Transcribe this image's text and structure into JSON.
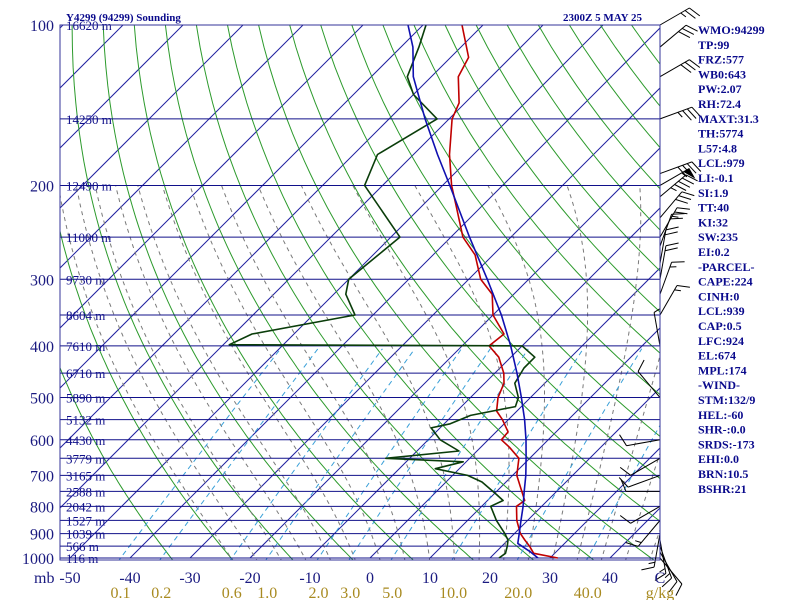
{
  "header": {
    "title": "Y4299 (94299) Sounding",
    "time": "2300Z  5 MAY 25"
  },
  "indices": [
    "WMO:94299",
    "TP:99",
    "FRZ:577",
    "WB0:643",
    "PW:2.07",
    "RH:72.4",
    "MAXT:31.3",
    "TH:5774",
    "L57:4.8",
    "LCL:979",
    "LI:-0.1",
    "SI:1.9",
    "TT:40",
    "KI:32",
    "SW:235",
    "EI:0.2",
    "-PARCEL-",
    "CAPE:224",
    "CINH:0",
    "LCL:939",
    "CAP:0.5",
    "LFC:924",
    "EL:674",
    "MPL:174",
    "-WIND-",
    "STM:132/9",
    "HEL:-60",
    "SHR-:0.0",
    "SRDS:-173",
    "EHI:0.0",
    "BRN:10.5",
    "BSHR:21"
  ],
  "axes": {
    "mb_label": "mb",
    "pressure_ticks": [
      "100",
      "200",
      "300",
      "400",
      "500",
      "600",
      "700",
      "800",
      "900",
      "1000"
    ],
    "temp_ticks": [
      "-50",
      "-40",
      "-30",
      "-20",
      "-10",
      "0",
      "10",
      "20",
      "30",
      "40",
      "C"
    ],
    "mixing_ratio_ticks": [
      "0.1",
      "0.2",
      "0.6",
      "1.0",
      "2.0",
      "3.0",
      "5.0",
      "10.0",
      "20.0",
      "40.0",
      "g/kg"
    ]
  },
  "height_labels": [
    {
      "p": 100,
      "text": "16620 m"
    },
    {
      "p": 150,
      "text": "14250 m"
    },
    {
      "p": 200,
      "text": "12490 m"
    },
    {
      "p": 250,
      "text": "11000 m"
    },
    {
      "p": 300,
      "text": "9730 m"
    },
    {
      "p": 350,
      "text": "8604 m"
    },
    {
      "p": 400,
      "text": "7610 m"
    },
    {
      "p": 450,
      "text": "6710 m"
    },
    {
      "p": 500,
      "text": "5890 m"
    },
    {
      "p": 550,
      "text": "5132 m"
    },
    {
      "p": 600,
      "text": "4430 m"
    },
    {
      "p": 650,
      "text": "3779 m"
    },
    {
      "p": 700,
      "text": "3165 m"
    },
    {
      "p": 750,
      "text": "2588 m"
    },
    {
      "p": 800,
      "text": "2042 m"
    },
    {
      "p": 850,
      "text": "1527 m"
    },
    {
      "p": 900,
      "text": "1039 m"
    },
    {
      "p": 950,
      "text": "566 m"
    },
    {
      "p": 1000,
      "text": "116 m"
    }
  ],
  "chart_data": {
    "type": "skew-t log-p sounding",
    "pressure_range_hpa": [
      1000,
      100
    ],
    "temperature_axis_range_c": [
      -50,
      50
    ],
    "skew": "45 degrees",
    "pressure_levels": [
      1000,
      950,
      925,
      900,
      850,
      800,
      750,
      700,
      650,
      600,
      550,
      500,
      450,
      400,
      350,
      300,
      250,
      200,
      150,
      125,
      100
    ],
    "series": [
      {
        "name": "temperature",
        "color": "#c00000",
        "points": [
          [
            1000,
            31.3
          ],
          [
            980,
            26.5
          ],
          [
            950,
            24.6
          ],
          [
            925,
            22.8
          ],
          [
            900,
            21.0
          ],
          [
            850,
            18.2
          ],
          [
            800,
            15.8
          ],
          [
            780,
            16.2
          ],
          [
            750,
            14.2
          ],
          [
            700,
            10.7
          ],
          [
            650,
            8.2
          ],
          [
            620,
            4.8
          ],
          [
            600,
            2.2
          ],
          [
            580,
            2.0
          ],
          [
            550,
            -1.0
          ],
          [
            530,
            -3.4
          ],
          [
            500,
            -5.4
          ],
          [
            470,
            -6.8
          ],
          [
            450,
            -8.5
          ],
          [
            420,
            -12.0
          ],
          [
            400,
            -15.5
          ],
          [
            380,
            -15.0
          ],
          [
            350,
            -20.0
          ],
          [
            320,
            -23.6
          ],
          [
            300,
            -28.0
          ],
          [
            270,
            -33.0
          ],
          [
            250,
            -38.0
          ],
          [
            220,
            -44.0
          ],
          [
            200,
            -48.5
          ],
          [
            175,
            -54.0
          ],
          [
            150,
            -59.5
          ],
          [
            140,
            -61.0
          ],
          [
            125,
            -65.5
          ],
          [
            115,
            -67.0
          ],
          [
            100,
            -73.5
          ]
        ]
      },
      {
        "name": "dewpoint",
        "color": "#0a3d0a",
        "points": [
          [
            1000,
            21.5
          ],
          [
            980,
            21.8
          ],
          [
            950,
            20.9
          ],
          [
            925,
            20.0
          ],
          [
            900,
            18.4
          ],
          [
            850,
            14.8
          ],
          [
            800,
            11.5
          ],
          [
            780,
            12.6
          ],
          [
            760,
            10.5
          ],
          [
            720,
            6.0
          ],
          [
            700,
            2.5
          ],
          [
            680,
            -4.0
          ],
          [
            660,
            -0.5
          ],
          [
            650,
            -14.0
          ],
          [
            630,
            -3.0
          ],
          [
            600,
            -8.0
          ],
          [
            570,
            -11.5
          ],
          [
            560,
            -9.0
          ],
          [
            540,
            -7.0
          ],
          [
            520,
            -1.0
          ],
          [
            500,
            -2.0
          ],
          [
            470,
            -5.0
          ],
          [
            440,
            -6.0
          ],
          [
            420,
            -6.0
          ],
          [
            400,
            -10.0
          ],
          [
            398,
            -59.0
          ],
          [
            380,
            -57.0
          ],
          [
            350,
            -43.0
          ],
          [
            320,
            -48.0
          ],
          [
            300,
            -50.0
          ],
          [
            250,
            -48.5
          ],
          [
            200,
            -63.0
          ],
          [
            175,
            -66.0
          ],
          [
            150,
            -62.0
          ],
          [
            135,
            -70.0
          ],
          [
            125,
            -74.0
          ],
          [
            110,
            -77.0
          ],
          [
            100,
            -79.5
          ]
        ]
      },
      {
        "name": "parcel",
        "color": "#1010b0",
        "points": [
          [
            1000,
            28.0
          ],
          [
            975,
            25.8
          ],
          [
            939,
            22.2
          ],
          [
            900,
            20.8
          ],
          [
            850,
            18.9
          ],
          [
            800,
            16.9
          ],
          [
            750,
            14.6
          ],
          [
            700,
            12.2
          ],
          [
            650,
            9.4
          ],
          [
            600,
            6.3
          ],
          [
            550,
            2.7
          ],
          [
            500,
            -1.5
          ],
          [
            450,
            -6.3
          ],
          [
            400,
            -11.9
          ],
          [
            350,
            -18.6
          ],
          [
            300,
            -26.9
          ],
          [
            250,
            -36.9
          ],
          [
            200,
            -48.8
          ],
          [
            175,
            -56.0
          ],
          [
            150,
            -64.0
          ],
          [
            125,
            -73.0
          ],
          [
            110,
            -78.0
          ],
          [
            100,
            -82.5
          ]
        ]
      }
    ],
    "winds": [
      {
        "p": 1000,
        "dir": 140,
        "spd": 10
      },
      {
        "p": 975,
        "dir": 150,
        "spd": 10
      },
      {
        "p": 950,
        "dir": 160,
        "spd": 15
      },
      {
        "p": 925,
        "dir": 170,
        "spd": 15
      },
      {
        "p": 900,
        "dir": 190,
        "spd": 15
      },
      {
        "p": 850,
        "dir": 220,
        "spd": 15
      },
      {
        "p": 800,
        "dir": 240,
        "spd": 10
      },
      {
        "p": 750,
        "dir": 270,
        "spd": 10
      },
      {
        "p": 700,
        "dir": 250,
        "spd": 10
      },
      {
        "p": 650,
        "dir": 240,
        "spd": 10
      },
      {
        "p": 600,
        "dir": 260,
        "spd": 10
      },
      {
        "p": 500,
        "dir": 320,
        "spd": 10
      },
      {
        "p": 400,
        "dir": 350,
        "spd": 5
      },
      {
        "p": 350,
        "dir": 30,
        "spd": 15
      },
      {
        "p": 320,
        "dir": 20,
        "spd": 15
      },
      {
        "p": 300,
        "dir": 10,
        "spd": 20
      },
      {
        "p": 280,
        "dir": 10,
        "spd": 20
      },
      {
        "p": 260,
        "dir": 20,
        "spd": 20
      },
      {
        "p": 250,
        "dir": 30,
        "spd": 25
      },
      {
        "p": 230,
        "dir": 40,
        "spd": 30
      },
      {
        "p": 210,
        "dir": 50,
        "spd": 45
      },
      {
        "p": 200,
        "dir": 60,
        "spd": 55
      },
      {
        "p": 190,
        "dir": 70,
        "spd": 40
      },
      {
        "p": 150,
        "dir": 70,
        "spd": 35
      },
      {
        "p": 125,
        "dir": 60,
        "spd": 30
      },
      {
        "p": 110,
        "dir": 50,
        "spd": 30
      },
      {
        "p": 100,
        "dir": 60,
        "spd": 25
      }
    ]
  }
}
